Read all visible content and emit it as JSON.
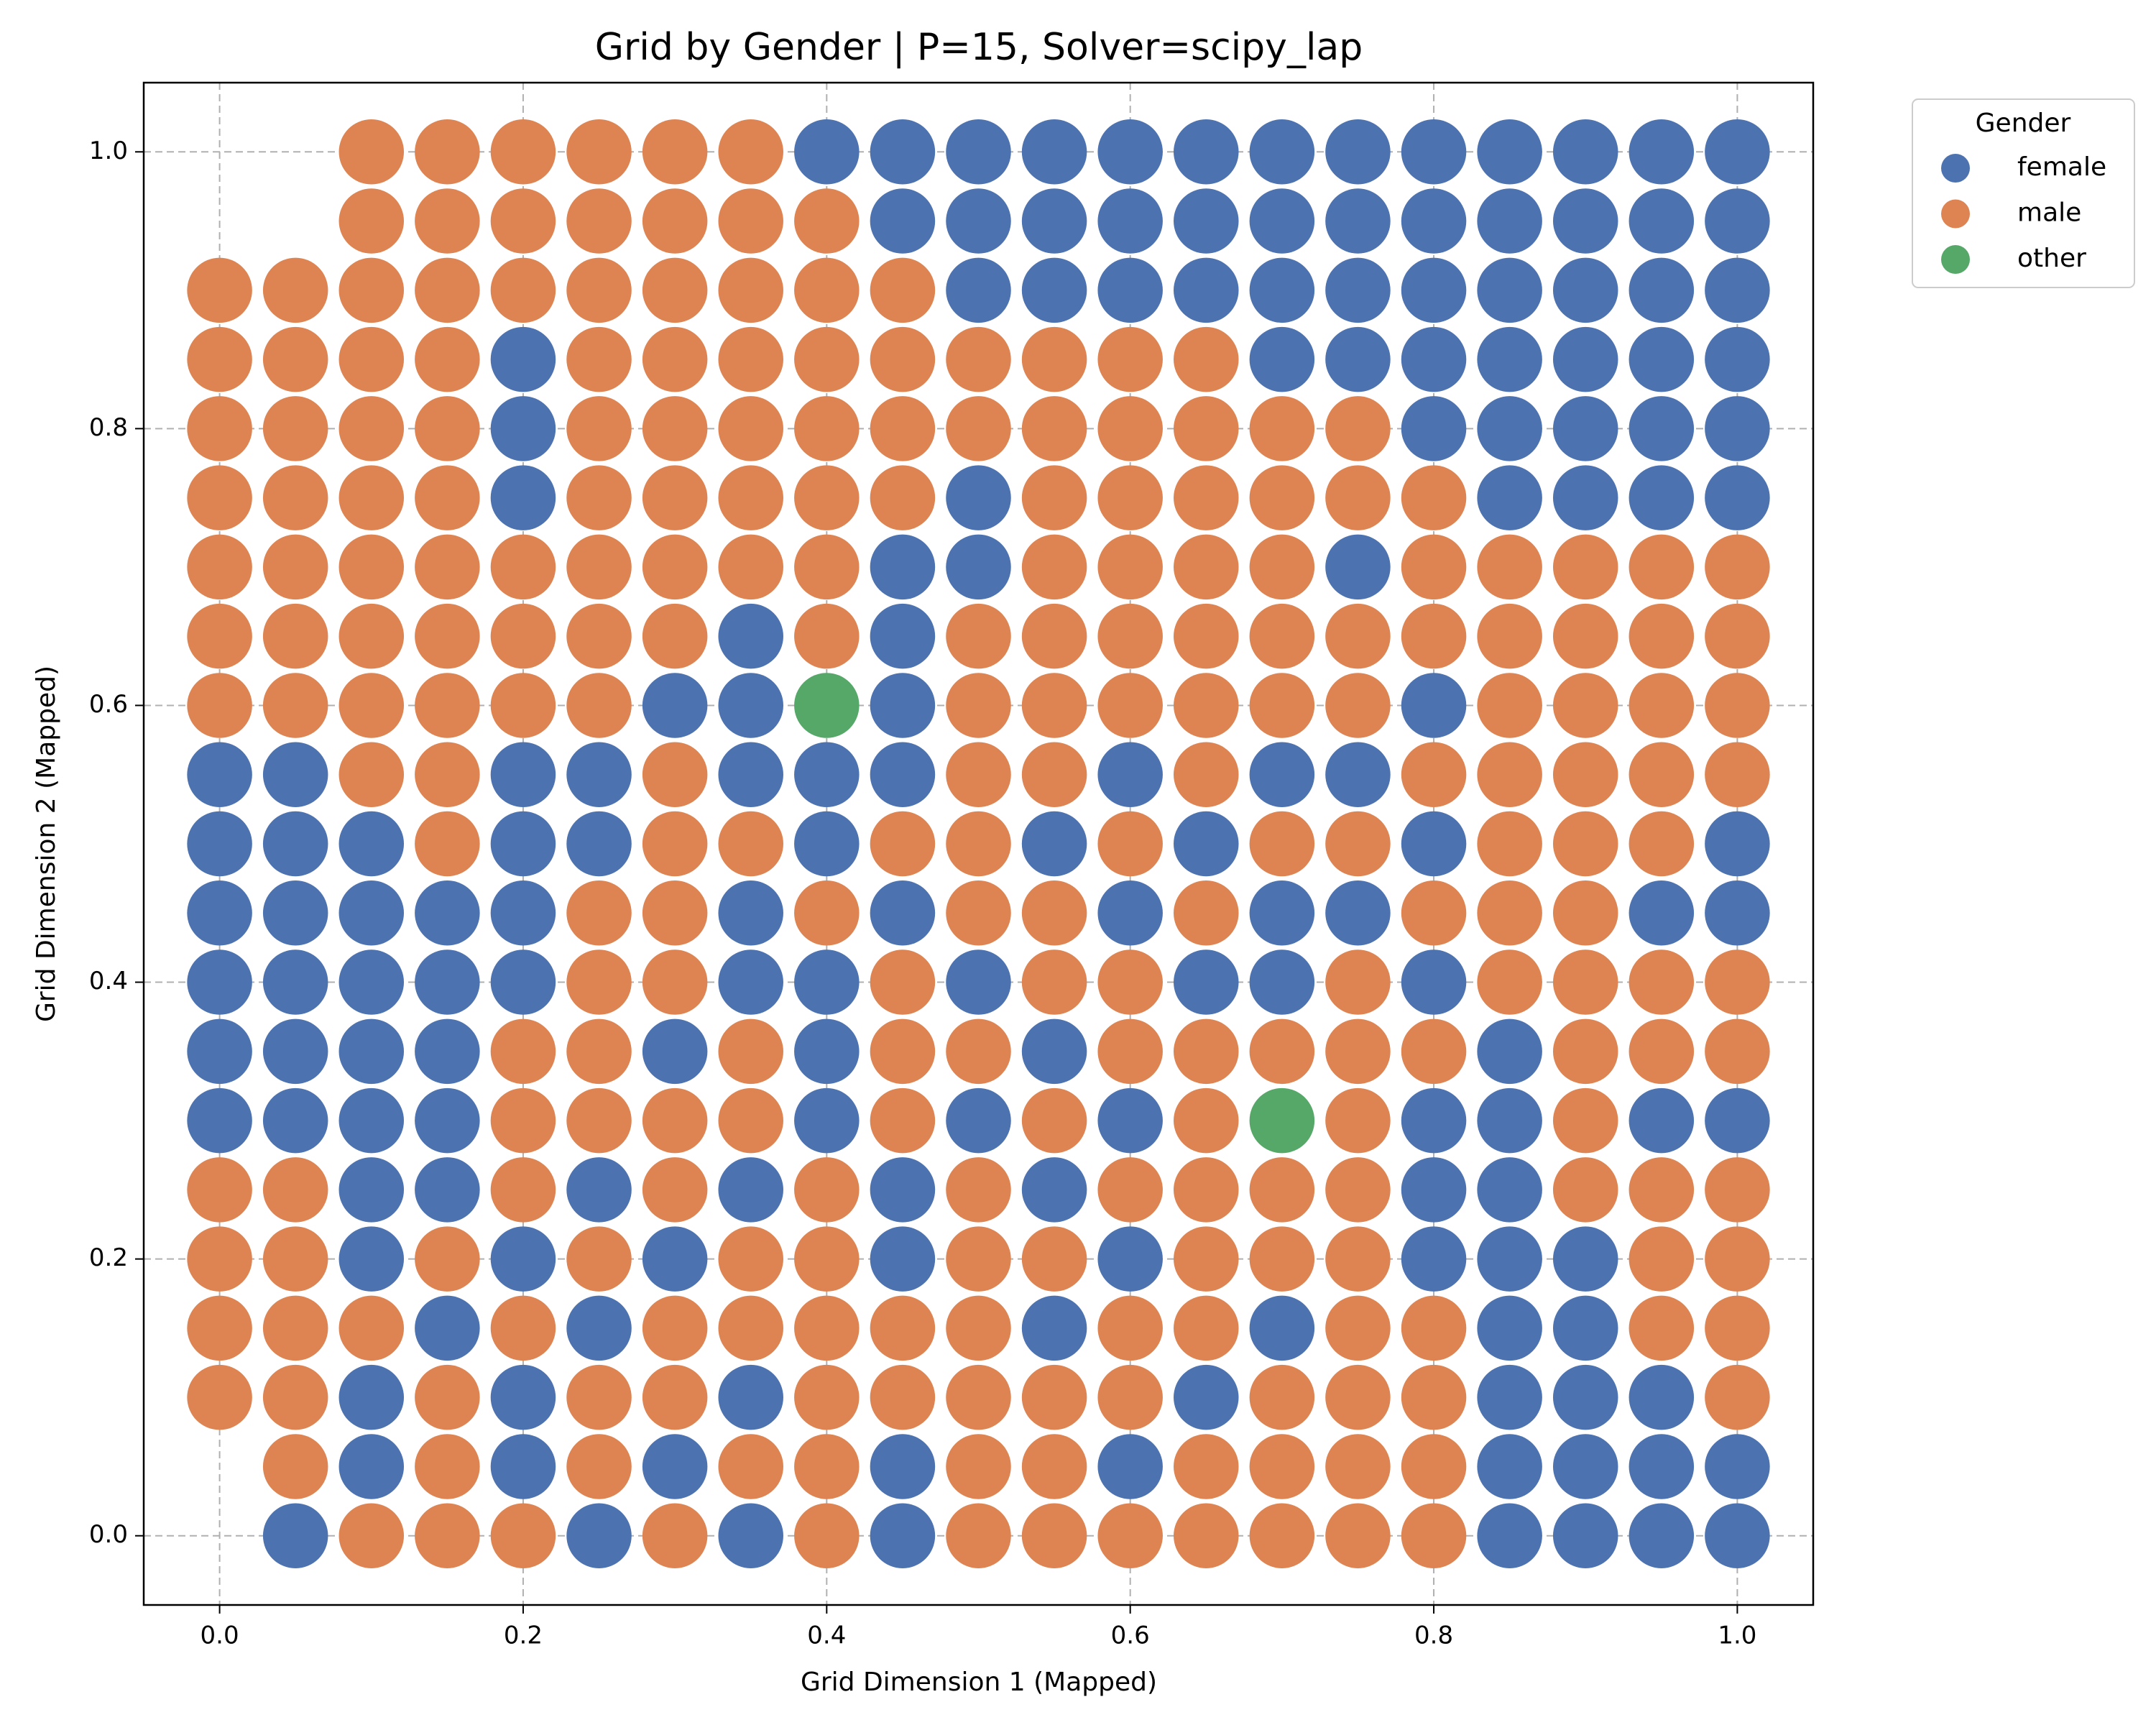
{
  "chart_data": {
    "type": "scatter",
    "title": "Grid by Gender | P=15, Solver=scipy_lap",
    "x_label": "Grid Dimension 1 (Mapped)",
    "y_label": "Grid Dimension 2 (Mapped)",
    "legend_title": "Gender",
    "legend": "outside-upper-right",
    "grid": true,
    "xlim": [
      -0.05,
      1.05
    ],
    "ylim": [
      -0.05,
      1.05
    ],
    "xticks": [
      {
        "value": 0,
        "label": "0.0"
      },
      0.2,
      0.4,
      0.6,
      0.8,
      {
        "value": 1,
        "label": "1.0"
      }
    ],
    "yticks": [
      {
        "value": 0,
        "label": "0.0"
      },
      0.2,
      0.4,
      0.6,
      0.8,
      {
        "value": 1,
        "label": "1.0"
      }
    ],
    "series": [
      {
        "name": "female",
        "color": "#4c72b0"
      },
      {
        "name": "male",
        "color": "#dd8452"
      },
      {
        "name": "other",
        "color": "#55a868"
      }
    ],
    "x": [
      0,
      0.05,
      0.1,
      0.15,
      0.2,
      0.25,
      0.3,
      0.35,
      0.4,
      0.45,
      0.5,
      0.55,
      0.6,
      0.65,
      0.7,
      0.75,
      0.8,
      0.85,
      0.9,
      0.95,
      1
    ],
    "y": [
      1,
      0.95,
      0.9,
      0.85,
      0.8,
      0.75,
      0.7,
      0.65,
      0.6,
      0.55,
      0.5,
      0.45,
      0.4,
      0.35,
      0.3,
      0.25,
      0.2,
      0.15,
      0.1,
      0.05,
      0
    ],
    "cells": [
      [
        null,
        null,
        1,
        1,
        1,
        1,
        1,
        1,
        0,
        0,
        0,
        0,
        0,
        0,
        0,
        0,
        0,
        0,
        0,
        0,
        0
      ],
      [
        null,
        null,
        1,
        1,
        1,
        1,
        1,
        1,
        1,
        0,
        0,
        0,
        0,
        0,
        0,
        0,
        0,
        0,
        0,
        0,
        0
      ],
      [
        1,
        1,
        1,
        1,
        1,
        1,
        1,
        1,
        1,
        1,
        0,
        0,
        0,
        0,
        0,
        0,
        0,
        0,
        0,
        0,
        0
      ],
      [
        1,
        1,
        1,
        1,
        0,
        1,
        1,
        1,
        1,
        1,
        1,
        1,
        1,
        1,
        0,
        0,
        0,
        0,
        0,
        0,
        0
      ],
      [
        1,
        1,
        1,
        1,
        0,
        1,
        1,
        1,
        1,
        1,
        1,
        1,
        1,
        1,
        1,
        1,
        0,
        0,
        0,
        0,
        0
      ],
      [
        1,
        1,
        1,
        1,
        0,
        1,
        1,
        1,
        1,
        1,
        0,
        1,
        1,
        1,
        1,
        1,
        1,
        0,
        0,
        0,
        0
      ],
      [
        1,
        1,
        1,
        1,
        1,
        1,
        1,
        1,
        1,
        0,
        0,
        1,
        1,
        1,
        1,
        0,
        1,
        1,
        1,
        1,
        1
      ],
      [
        1,
        1,
        1,
        1,
        1,
        1,
        1,
        0,
        1,
        0,
        1,
        1,
        1,
        1,
        1,
        1,
        1,
        1,
        1,
        1,
        1
      ],
      [
        1,
        1,
        1,
        1,
        1,
        1,
        0,
        0,
        2,
        0,
        1,
        1,
        1,
        1,
        1,
        1,
        0,
        1,
        1,
        1,
        1
      ],
      [
        0,
        0,
        1,
        1,
        0,
        0,
        1,
        0,
        0,
        0,
        1,
        1,
        0,
        1,
        0,
        0,
        1,
        1,
        1,
        1,
        1
      ],
      [
        0,
        0,
        0,
        1,
        0,
        0,
        1,
        1,
        0,
        1,
        1,
        0,
        1,
        0,
        1,
        1,
        0,
        1,
        1,
        1,
        0
      ],
      [
        0,
        0,
        0,
        0,
        0,
        1,
        1,
        0,
        1,
        0,
        1,
        1,
        0,
        1,
        0,
        0,
        1,
        1,
        1,
        0,
        0
      ],
      [
        0,
        0,
        0,
        0,
        0,
        1,
        1,
        0,
        0,
        1,
        0,
        1,
        1,
        0,
        0,
        1,
        0,
        1,
        1,
        1,
        1
      ],
      [
        0,
        0,
        0,
        0,
        1,
        1,
        0,
        1,
        0,
        1,
        1,
        0,
        1,
        1,
        1,
        1,
        1,
        0,
        1,
        1,
        1
      ],
      [
        0,
        0,
        0,
        0,
        1,
        1,
        1,
        1,
        0,
        1,
        0,
        1,
        0,
        1,
        2,
        1,
        0,
        0,
        1,
        0,
        0
      ],
      [
        1,
        1,
        0,
        0,
        1,
        0,
        1,
        0,
        1,
        0,
        1,
        0,
        1,
        1,
        1,
        1,
        0,
        0,
        1,
        1,
        1
      ],
      [
        1,
        1,
        0,
        1,
        0,
        1,
        0,
        1,
        1,
        0,
        1,
        1,
        0,
        1,
        1,
        1,
        0,
        0,
        0,
        1,
        1
      ],
      [
        1,
        1,
        1,
        0,
        1,
        0,
        1,
        1,
        1,
        1,
        1,
        0,
        1,
        1,
        0,
        1,
        1,
        0,
        0,
        1,
        1
      ],
      [
        1,
        1,
        0,
        1,
        0,
        1,
        1,
        0,
        1,
        1,
        1,
        1,
        1,
        0,
        1,
        1,
        1,
        0,
        0,
        0,
        1
      ],
      [
        null,
        1,
        0,
        1,
        0,
        1,
        0,
        1,
        1,
        0,
        1,
        1,
        0,
        1,
        1,
        1,
        1,
        0,
        0,
        0,
        0
      ],
      [
        null,
        0,
        1,
        1,
        1,
        0,
        1,
        0,
        1,
        0,
        1,
        1,
        1,
        1,
        1,
        1,
        1,
        0,
        0,
        0,
        0
      ]
    ]
  }
}
